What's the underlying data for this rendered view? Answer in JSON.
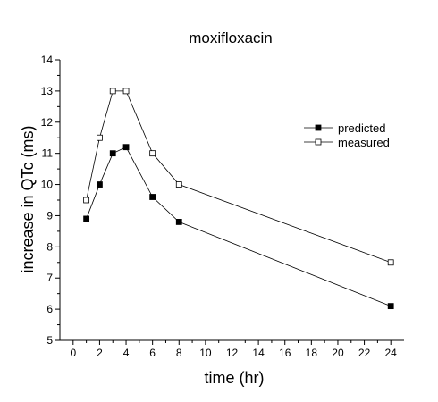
{
  "chart_data": {
    "type": "line",
    "title": "moxifloxacin",
    "xlabel": "time (hr)",
    "ylabel": "increase in QTc (ms)",
    "xlim": [
      -1,
      25
    ],
    "ylim": [
      5,
      14
    ],
    "xticks": [
      0,
      2,
      4,
      6,
      8,
      10,
      12,
      14,
      16,
      18,
      20,
      22,
      24
    ],
    "yticks": [
      5,
      6,
      7,
      8,
      9,
      10,
      11,
      12,
      13,
      14
    ],
    "grid": false,
    "legend_position": "upper-right",
    "series": [
      {
        "name": "predicted",
        "marker": "filled-square",
        "color": "#000000",
        "x": [
          1,
          2,
          3,
          4,
          6,
          8,
          24
        ],
        "y": [
          8.9,
          10.0,
          11.0,
          11.2,
          9.6,
          8.8,
          6.1
        ]
      },
      {
        "name": "measured",
        "marker": "open-square",
        "color": "#000000",
        "x": [
          1,
          2,
          3,
          4,
          6,
          8,
          24
        ],
        "y": [
          9.5,
          11.5,
          13.0,
          13.0,
          11.0,
          10.0,
          7.5
        ]
      }
    ]
  }
}
